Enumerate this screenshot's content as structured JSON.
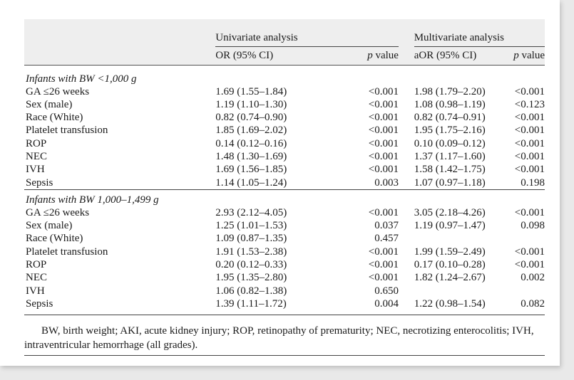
{
  "header": {
    "group1": "Univariate analysis",
    "group2": "Multivariate analysis",
    "or_col": "OR (95% CI)",
    "aor_col": "aOR (95% CI)",
    "p_italic": "p",
    "p_suffix": " value"
  },
  "sections": [
    {
      "title": "Infants with BW <1,000 g",
      "rows": [
        {
          "label": "GA ≤26 weeks",
          "or": "1.69 (1.55–1.84)",
          "p1": "<0.001",
          "aor": "1.98 (1.79–2.20)",
          "p2": "<0.001"
        },
        {
          "label": "Sex (male)",
          "or": "1.19 (1.10–1.30)",
          "p1": "<0.001",
          "aor": "1.08 (0.98–1.19)",
          "p2": "<0.123"
        },
        {
          "label": "Race (White)",
          "or": "0.82 (0.74–0.90)",
          "p1": "<0.001",
          "aor": "0.82 (0.74–0.91)",
          "p2": "<0.001"
        },
        {
          "label": "Platelet transfusion",
          "or": "1.85 (1.69–2.02)",
          "p1": "<0.001",
          "aor": "1.95 (1.75–2.16)",
          "p2": "<0.001"
        },
        {
          "label": "ROP",
          "or": "0.14 (0.12–0.16)",
          "p1": "<0.001",
          "aor": "0.10 (0.09–0.12)",
          "p2": "<0.001"
        },
        {
          "label": "NEC",
          "or": "1.48 (1.30–1.69)",
          "p1": "<0.001",
          "aor": "1.37 (1.17–1.60)",
          "p2": "<0.001"
        },
        {
          "label": "IVH",
          "or": "1.69 (1.56–1.85)",
          "p1": "<0.001",
          "aor": "1.58 (1.42–1.75)",
          "p2": "<0.001"
        },
        {
          "label": "Sepsis",
          "or": "1.14 (1.05–1.24)",
          "p1": "0.003",
          "aor": "1.07 (0.97–1.18)",
          "p2": "0.198"
        }
      ]
    },
    {
      "title": "Infants with BW 1,000–1,499 g",
      "rows": [
        {
          "label": "GA ≤26 weeks",
          "or": "2.93 (2.12–4.05)",
          "p1": "<0.001",
          "aor": "3.05 (2.18–4.26)",
          "p2": "<0.001"
        },
        {
          "label": "Sex (male)",
          "or": "1.25 (1.01–1.53)",
          "p1": "0.037",
          "aor": "1.19 (0.97–1.47)",
          "p2": "0.098"
        },
        {
          "label": "Race (White)",
          "or": "1.09 (0.87–1.35)",
          "p1": "0.457",
          "aor": "",
          "p2": ""
        },
        {
          "label": "Platelet transfusion",
          "or": "1.91 (1.53–2.38)",
          "p1": "<0.001",
          "aor": "1.99 (1.59–2.49)",
          "p2": "<0.001"
        },
        {
          "label": "ROP",
          "or": "0.20 (0.12–0.33)",
          "p1": "<0.001",
          "aor": "0.17 (0.10–0.28)",
          "p2": "<0.001"
        },
        {
          "label": "NEC",
          "or": "1.95 (1.35–2.80)",
          "p1": "<0.001",
          "aor": "1.82 (1.24–2.67)",
          "p2": "0.002"
        },
        {
          "label": "IVH",
          "or": "1.06 (0.82–1.38)",
          "p1": "0.650",
          "aor": "",
          "p2": ""
        },
        {
          "label": "Sepsis",
          "or": "1.39 (1.11–1.72)",
          "p1": "0.004",
          "aor": "1.22 (0.98–1.54)",
          "p2": "0.082"
        }
      ]
    }
  ],
  "footnote": "BW, birth weight; AKI, acute kidney injury; ROP, retinopathy of prematurity; NEC, necrotizing enterocolitis; IVH, intraventricular hemorrhage (all grades)."
}
